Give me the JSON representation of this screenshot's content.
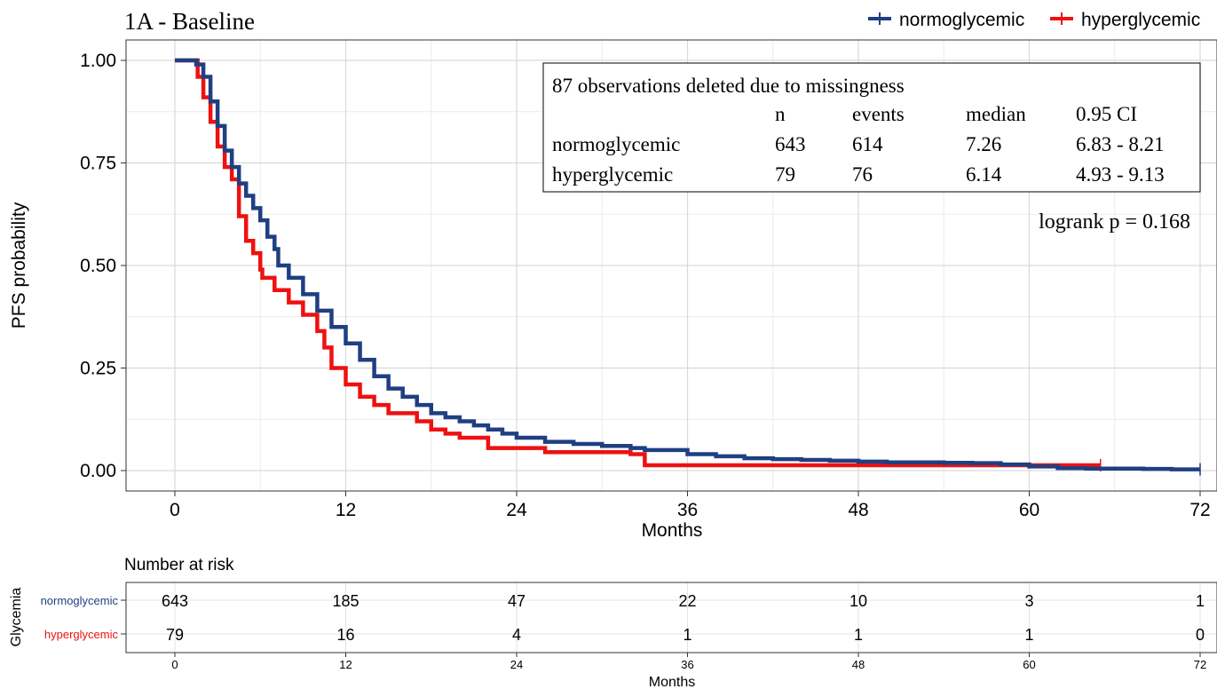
{
  "chart_data": {
    "type": "line",
    "title": "1A - Baseline",
    "xlabel": "Months",
    "ylabel": "PFS probability",
    "xlim": [
      0,
      72
    ],
    "ylim": [
      0,
      1
    ],
    "x_ticks": [
      0,
      12,
      24,
      36,
      48,
      60,
      72
    ],
    "y_ticks": [
      "0.00",
      "0.25",
      "0.50",
      "0.75",
      "1.00"
    ],
    "grid": true,
    "legend_position": "top-right",
    "series": [
      {
        "name": "normoglycemic",
        "color": "#1f3f82",
        "x": [
          0,
          1,
          1.5,
          2,
          2.5,
          3,
          3.5,
          4,
          4.5,
          5,
          5.5,
          6,
          6.5,
          7,
          7.26,
          8,
          9,
          10,
          11,
          12,
          13,
          14,
          15,
          16,
          17,
          18,
          19,
          20,
          21,
          22,
          23,
          24,
          26,
          28,
          30,
          32,
          33,
          36,
          38,
          40,
          42,
          44,
          46,
          48,
          50,
          52,
          54,
          56,
          58,
          60,
          62,
          64,
          66,
          68,
          70,
          72
        ],
        "y": [
          1.0,
          1.0,
          0.99,
          0.96,
          0.9,
          0.84,
          0.78,
          0.74,
          0.7,
          0.67,
          0.64,
          0.61,
          0.57,
          0.54,
          0.5,
          0.47,
          0.43,
          0.39,
          0.35,
          0.31,
          0.27,
          0.23,
          0.2,
          0.18,
          0.16,
          0.14,
          0.13,
          0.12,
          0.11,
          0.1,
          0.09,
          0.08,
          0.07,
          0.065,
          0.06,
          0.055,
          0.05,
          0.04,
          0.035,
          0.03,
          0.028,
          0.026,
          0.024,
          0.022,
          0.02,
          0.02,
          0.019,
          0.018,
          0.015,
          0.01,
          0.006,
          0.005,
          0.005,
          0.004,
          0.003,
          0.003
        ]
      },
      {
        "name": "hyperglycemic",
        "color": "#ee1111",
        "x": [
          0,
          1,
          1.6,
          2,
          2.5,
          3,
          3.5,
          4,
          4.5,
          5,
          5.5,
          6,
          6.14,
          7,
          8,
          9,
          10,
          10.5,
          11,
          12,
          13,
          14,
          15,
          17,
          18,
          19,
          20,
          22,
          26,
          32,
          33,
          40,
          56,
          65
        ],
        "y": [
          1.0,
          1.0,
          0.96,
          0.91,
          0.85,
          0.79,
          0.74,
          0.71,
          0.62,
          0.56,
          0.53,
          0.49,
          0.47,
          0.44,
          0.41,
          0.38,
          0.34,
          0.3,
          0.25,
          0.21,
          0.18,
          0.16,
          0.14,
          0.12,
          0.1,
          0.09,
          0.08,
          0.055,
          0.045,
          0.04,
          0.013,
          0.013,
          0.013,
          0.013
        ]
      }
    ],
    "summary_table": {
      "note": "87 observations deleted due to missingness",
      "columns": [
        "",
        "n",
        "events",
        "median",
        "0.95 CI"
      ],
      "rows": [
        [
          "normoglycemic",
          "643",
          "614",
          "7.26",
          "6.83 - 8.21"
        ],
        [
          "hyperglycemic",
          "79",
          "76",
          "6.14",
          "4.93 - 9.13"
        ]
      ]
    },
    "logrank": "logrank p = 0.168",
    "risk_table": {
      "title": "Number at risk",
      "ylabel": "Glycemia",
      "xlabel": "Months",
      "x": [
        0,
        12,
        24,
        36,
        48,
        60,
        72
      ],
      "rows": [
        {
          "name": "normoglycemic",
          "color": "#1f3f82",
          "values": [
            643,
            185,
            47,
            22,
            10,
            3,
            1
          ]
        },
        {
          "name": "hyperglycemic",
          "color": "#ee1111",
          "values": [
            79,
            16,
            4,
            1,
            1,
            1,
            0
          ]
        }
      ]
    }
  }
}
